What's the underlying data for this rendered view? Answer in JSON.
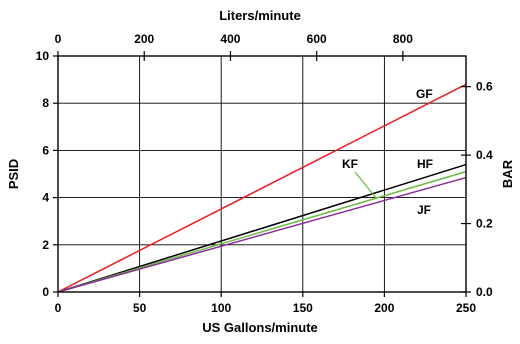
{
  "chart_data": {
    "type": "line",
    "title": "",
    "xlabel": "US Gallons/minute",
    "ylabel": "PSID",
    "x2label": "Liters/minute",
    "y2label": "BAR",
    "xlim": [
      0,
      250
    ],
    "ylim": [
      0,
      10
    ],
    "x2lim": [
      0,
      946.35
    ],
    "y2lim": [
      0,
      0.6895
    ],
    "xticks": [
      0,
      50,
      100,
      150,
      200,
      250
    ],
    "xtick_labels": [
      "0",
      "50",
      "100",
      "150",
      "200",
      "250"
    ],
    "yticks": [
      0,
      2,
      4,
      6,
      8,
      10
    ],
    "ytick_labels": [
      "0",
      "2",
      "4",
      "6",
      "8",
      "10"
    ],
    "x2ticks": [
      0,
      200,
      400,
      600,
      800
    ],
    "x2tick_labels": [
      "0",
      "200",
      "400",
      "600",
      "800"
    ],
    "y2ticks": [
      0,
      0.2,
      0.4,
      0.6
    ],
    "y2tick_labels": [
      "0.0",
      "0.2",
      "0.4",
      "0.6"
    ],
    "grid": true,
    "series": [
      {
        "name": "GF",
        "color": "#ee1c24",
        "x": [
          0,
          250
        ],
        "y": [
          0,
          8.8
        ]
      },
      {
        "name": "HF",
        "color": "#000000",
        "x": [
          0,
          250
        ],
        "y": [
          0,
          5.4
        ]
      },
      {
        "name": "KF",
        "color": "#6dbb45",
        "x": [
          0,
          250
        ],
        "y": [
          0,
          5.1
        ]
      },
      {
        "name": "JF",
        "color": "#8b2b9c",
        "x": [
          0,
          250
        ],
        "y": [
          0,
          4.85
        ]
      }
    ]
  }
}
